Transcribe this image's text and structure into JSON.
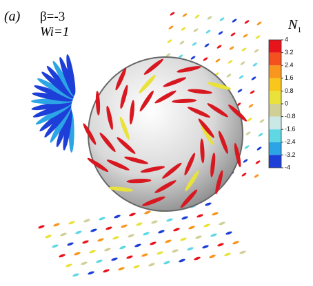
{
  "figure": {
    "panel_label": "(a)",
    "annotations": [
      "β=-3",
      "Wi=1"
    ],
    "colorbar": {
      "title": "N",
      "title_subscript": "1",
      "vlim": [
        4,
        -4
      ],
      "ticks": [
        4,
        3.2,
        2.4,
        1.6,
        0.8,
        0,
        -0.8,
        -1.6,
        -2.4,
        -3.2,
        -4
      ],
      "colors": [
        "#e8141c",
        "#f4511e",
        "#f8961d",
        "#f9c61b",
        "#e9e23a",
        "#cfcf96",
        "#c9e8e6",
        "#5fd8e4",
        "#2ba5e6",
        "#1d3fd8"
      ]
    }
  }
}
